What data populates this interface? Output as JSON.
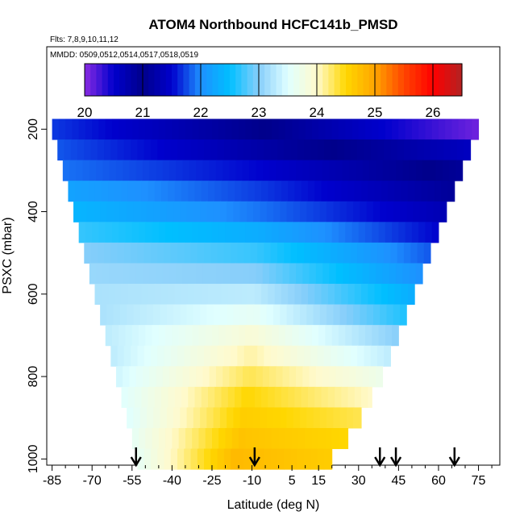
{
  "chart_data": {
    "type": "heatmap",
    "title": "ATOM4 Northbound HCFC141b_PMSD",
    "flights_note": "Flts: 7,8,9,10,11,12",
    "dates_note": "MMDD: 0509,0512,0514,0517,0518,0519",
    "xlabel": "Latitude (deg N)",
    "ylabel": "PSXC (mbar)",
    "xlim": [
      -87,
      83
    ],
    "ylim": [
      1015,
      0
    ],
    "x_ticks": [
      -85,
      -70,
      -55,
      -40,
      -25,
      -10,
      5,
      15,
      30,
      45,
      60,
      75
    ],
    "x_tick_labels": [
      "-85",
      "-70",
      "-55",
      "-40",
      "-25",
      "-10",
      "5",
      "15",
      "30",
      "45",
      "60",
      "75"
    ],
    "y_ticks": [
      200,
      400,
      600,
      800,
      1000
    ],
    "y_tick_labels": [
      "200",
      "400",
      "600",
      "800",
      "1000"
    ],
    "colorbar": {
      "min": 20,
      "max": 26.5,
      "ticks": [
        20,
        21,
        22,
        23,
        24,
        25,
        26
      ],
      "tick_labels": [
        "20",
        "21",
        "22",
        "23",
        "24",
        "25",
        "26"
      ],
      "colors": [
        "#8a2be2",
        "#0000cd",
        "#00008b",
        "#0000cd",
        "#1e90ff",
        "#00bfff",
        "#87cefa",
        "#e0ffff",
        "#fffacd",
        "#ffd700",
        "#ffa500",
        "#ff4500",
        "#ff0000",
        "#b22222"
      ]
    },
    "levels": [
      {
        "p": 200,
        "lat_min": -85,
        "lat_max": 75,
        "v_left": 21.7,
        "v_mid": 21.0,
        "v_right": 20.1
      },
      {
        "p": 250,
        "lat_min": -83,
        "lat_max": 72,
        "v_left": 21.8,
        "v_mid": 21.2,
        "v_right": 20.6
      },
      {
        "p": 300,
        "lat_min": -81,
        "lat_max": 69,
        "v_left": 21.9,
        "v_mid": 21.5,
        "v_right": 20.9
      },
      {
        "p": 350,
        "lat_min": -79,
        "lat_max": 66,
        "v_left": 22.2,
        "v_mid": 21.7,
        "v_right": 21.1
      },
      {
        "p": 400,
        "lat_min": -77,
        "lat_max": 63,
        "v_left": 22.4,
        "v_mid": 21.9,
        "v_right": 21.3
      },
      {
        "p": 450,
        "lat_min": -75,
        "lat_max": 60,
        "v_left": 22.7,
        "v_mid": 22.3,
        "v_right": 21.5
      },
      {
        "p": 500,
        "lat_min": -73,
        "lat_max": 57,
        "v_left": 23.0,
        "v_mid": 22.7,
        "v_right": 21.8
      },
      {
        "p": 550,
        "lat_min": -71,
        "lat_max": 54,
        "v_left": 23.1,
        "v_mid": 23.0,
        "v_right": 22.0
      },
      {
        "p": 600,
        "lat_min": -69,
        "lat_max": 51,
        "v_left": 23.2,
        "v_mid": 23.3,
        "v_right": 22.3
      },
      {
        "p": 650,
        "lat_min": -67,
        "lat_max": 48,
        "v_left": 23.2,
        "v_mid": 23.6,
        "v_right": 22.6
      },
      {
        "p": 700,
        "lat_min": -65,
        "lat_max": 45,
        "v_left": 23.3,
        "v_mid": 23.9,
        "v_right": 23.0
      },
      {
        "p": 750,
        "lat_min": -63,
        "lat_max": 42,
        "v_left": 23.3,
        "v_mid": 24.1,
        "v_right": 23.3
      },
      {
        "p": 800,
        "lat_min": -61,
        "lat_max": 39,
        "v_left": 23.4,
        "v_mid": 24.3,
        "v_right": 23.7
      },
      {
        "p": 850,
        "lat_min": -59,
        "lat_max": 35,
        "v_left": 23.5,
        "v_mid": 24.5,
        "v_right": 24.0
      },
      {
        "p": 900,
        "lat_min": -57,
        "lat_max": 31,
        "v_left": 23.5,
        "v_mid": 24.6,
        "v_right": 24.3
      },
      {
        "p": 950,
        "lat_min": -55,
        "lat_max": 26,
        "v_left": 23.6,
        "v_mid": 24.7,
        "v_right": 24.5
      },
      {
        "p": 1000,
        "lat_min": -53,
        "lat_max": 20,
        "v_left": 23.6,
        "v_mid": 24.8,
        "v_right": 24.6
      }
    ],
    "arrows_lat": [
      -53.5,
      -9,
      38,
      44,
      66
    ]
  }
}
